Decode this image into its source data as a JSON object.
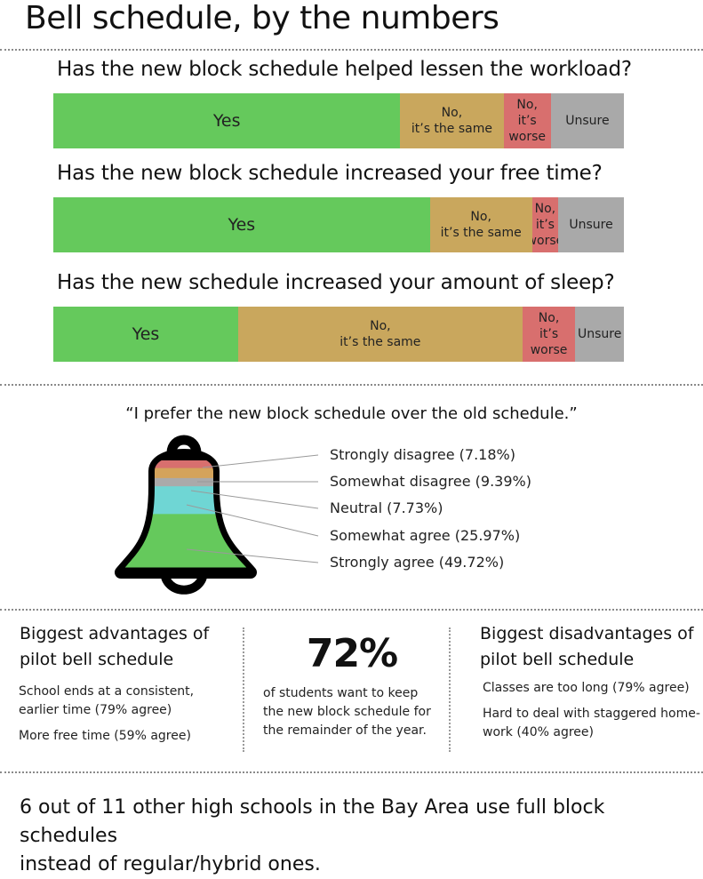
{
  "title": "Bell schedule, by the numbers",
  "colors": {
    "yes": "#65c95c",
    "same": "#c9a75d",
    "worse": "#d86f6e",
    "unsure": "#a9a9a9",
    "neutral": "#aaaaaa",
    "somewhat_agree": "#6fd6d4",
    "somewhat_disagree": "#d4a35b"
  },
  "chart_data": [
    {
      "type": "bar",
      "orientation": "horizontal-stacked",
      "title": "Has the new block schedule helped lessen the workload?",
      "categories": [
        "Yes",
        "No, it's the same",
        "No, it's worse",
        "Unsure"
      ],
      "values": [
        60.8,
        18.1,
        8.3,
        12.8
      ],
      "labels": [
        "Yes",
        "No,",
        "it’s the same",
        "No,",
        "it’s",
        "worse",
        "Unsure"
      ]
    },
    {
      "type": "bar",
      "orientation": "horizontal-stacked",
      "title": "Has the new block schedule increased your free time?",
      "categories": [
        "Yes",
        "No, it's the same",
        "No, it's worse",
        "Unsure"
      ],
      "values": [
        66.0,
        17.9,
        4.6,
        11.5
      ],
      "labels": [
        "Yes",
        "No,",
        "it’s the same",
        "No,",
        "it’s",
        "worse",
        "Unsure"
      ]
    },
    {
      "type": "bar",
      "orientation": "horizontal-stacked",
      "title": "Has the new schedule increased your amount of sleep?",
      "categories": [
        "Yes",
        "No, it's the same",
        "No, it's worse",
        "Unsure"
      ],
      "values": [
        32.4,
        49.8,
        9.3,
        8.5
      ],
      "labels": [
        "Yes",
        "No,",
        "it’s the same",
        "No,",
        "it’s",
        "worse",
        "Unsure"
      ]
    },
    {
      "type": "pie",
      "shape": "bell",
      "title": "“I prefer the new block schedule over the old schedule.”",
      "categories": [
        "Strongly disagree",
        "Somewhat disagree",
        "Neutral",
        "Somewhat agree",
        "Strongly agree"
      ],
      "values": [
        7.18,
        9.39,
        7.73,
        25.97,
        49.72
      ],
      "legend": [
        "Strongly disagree (7.18%)",
        "Somewhat disagree (9.39%)",
        "Neutral (7.73%)",
        "Somewhat agree (25.97%)",
        "Strongly agree (49.72%)"
      ]
    }
  ],
  "advantages": {
    "heading_line1": "Biggest advantages of",
    "heading_line2": "pilot bell schedule",
    "item1_line1": "School ends at a consistent,",
    "item1_line2": "earlier time (79% agree)",
    "item2": "More free time (59% agree)"
  },
  "stat": {
    "value": 72,
    "value_text": "72%",
    "line1": "of students want to keep",
    "line2": "the new block schedule for",
    "line3": "the remainder of the year."
  },
  "disadvantages": {
    "heading_line1": "Biggest disadvantages of",
    "heading_line2": "pilot bell schedule",
    "item1": "Classes are too long (79% agree)",
    "item2_line1": "Hard to deal with staggered home-",
    "item2_line2": "work (40% agree)"
  },
  "footer_line1": "6 out of 11 other high schools in the Bay Area use full block schedules",
  "footer_line2": "instead of regular/hybrid ones."
}
